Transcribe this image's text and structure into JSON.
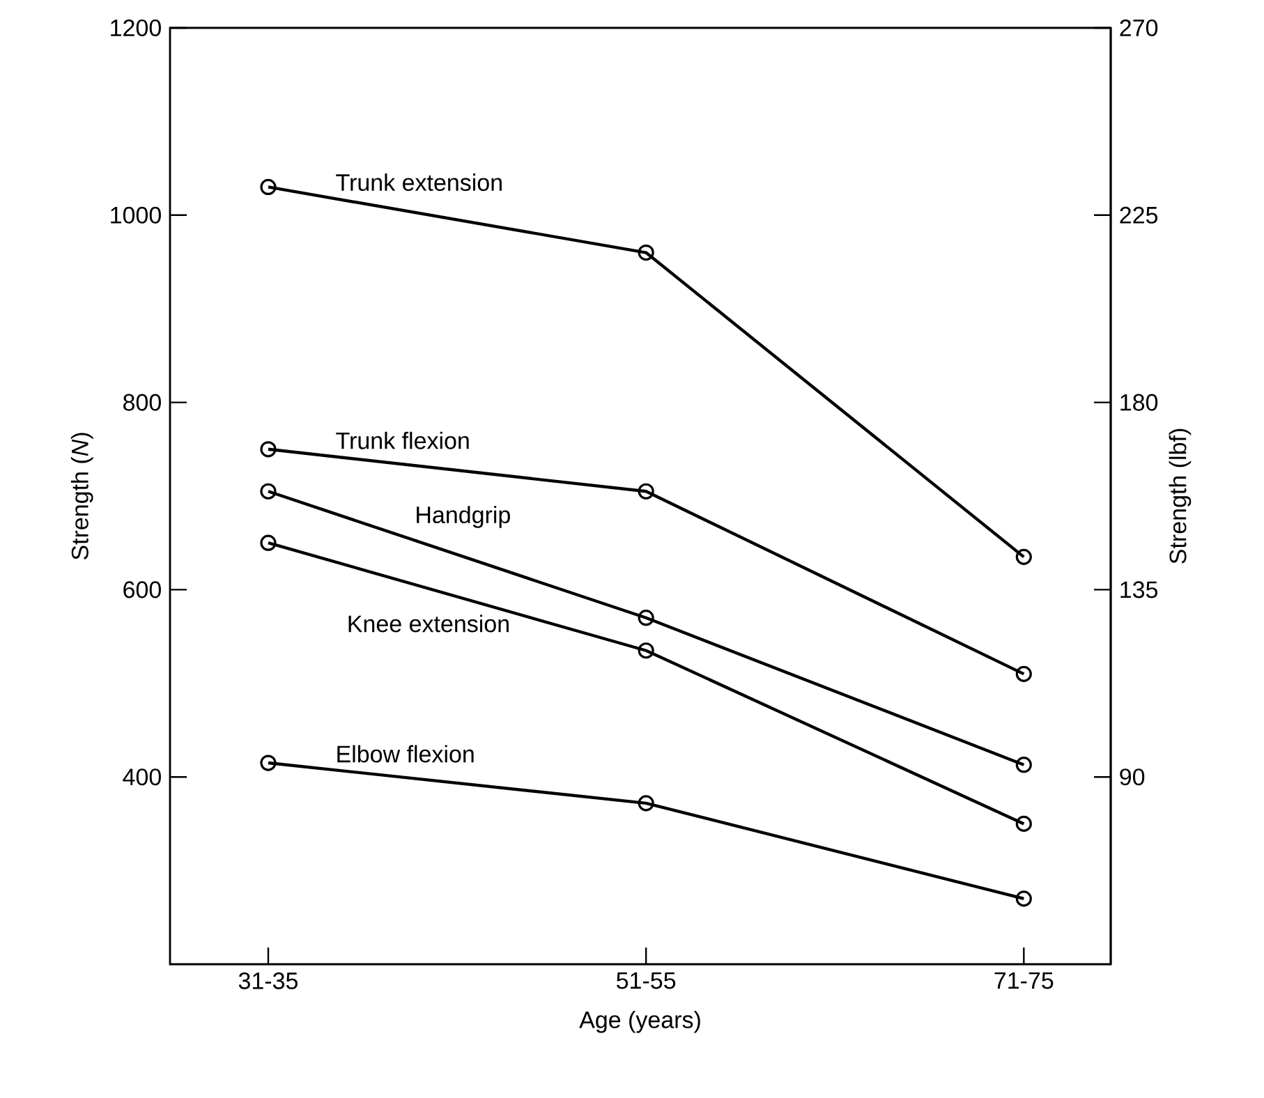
{
  "chart_data": {
    "type": "line",
    "xlabel": "Age (years)",
    "ylabel": "Strength (*N*)",
    "y2label": "Strength (lbf)",
    "categories": [
      "31-35",
      "51-55",
      "71-75"
    ],
    "ylim": [
      200,
      1200
    ],
    "yticks": [
      400,
      600,
      800,
      1000,
      1200
    ],
    "y2lim": [
      45,
      270
    ],
    "y2ticks": [
      90,
      135,
      180,
      225,
      270
    ],
    "marker": "circle",
    "line_style": "solid",
    "series": [
      {
        "name": "Trunk extension",
        "color": "#000000",
        "values": [
          1030,
          960,
          635
        ]
      },
      {
        "name": "Trunk flexion",
        "color": "#000000",
        "values": [
          750,
          705,
          510
        ]
      },
      {
        "name": "Handgrip",
        "color": "#000000",
        "values": [
          705,
          570,
          413
        ]
      },
      {
        "name": "Knee extension",
        "color": "#000000",
        "values": [
          650,
          535,
          350
        ]
      },
      {
        "name": "Elbow flexion",
        "color": "#000000",
        "values": [
          415,
          372,
          270
        ]
      }
    ]
  }
}
